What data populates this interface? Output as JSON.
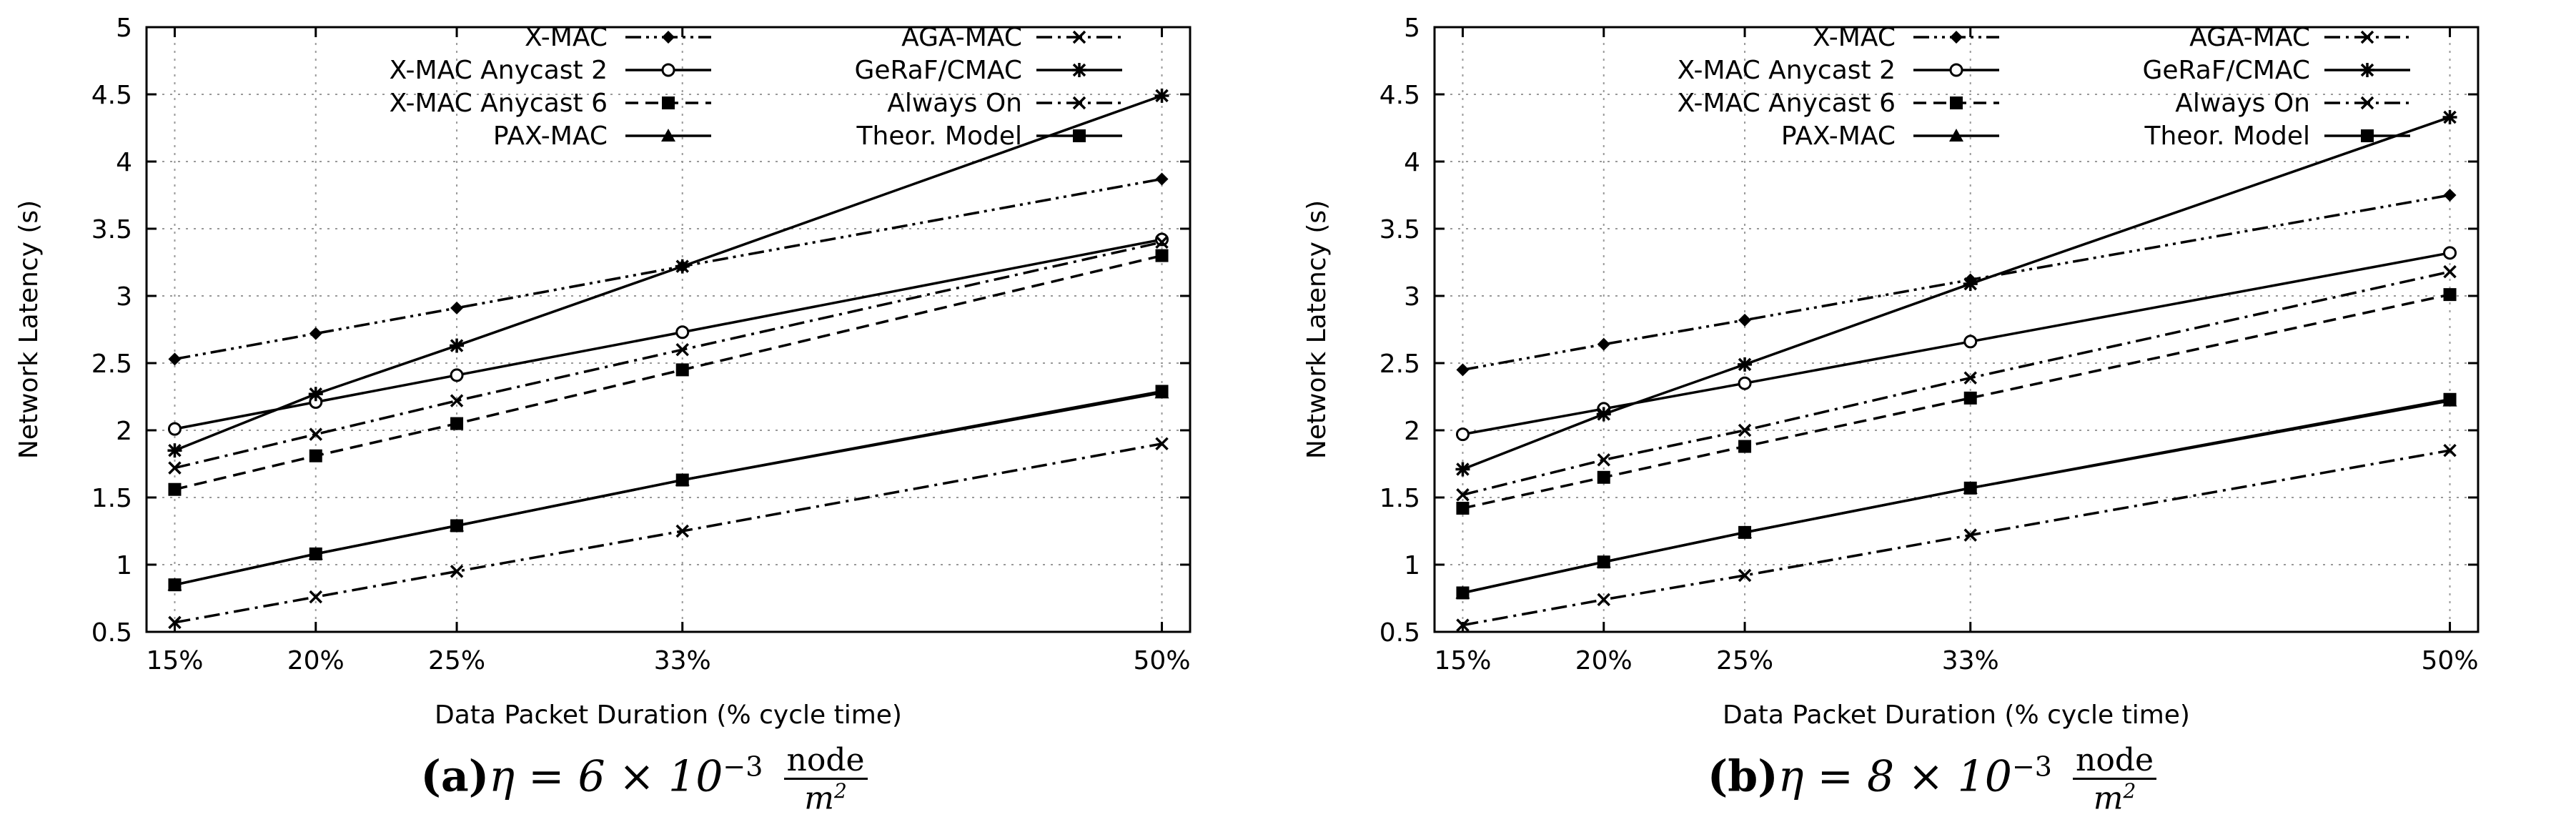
{
  "xlabel": "Data Packet Duration (% cycle time)",
  "ylabel": "Network Latency (s)",
  "legend": [
    {
      "name": "X-MAC",
      "marker": "diamond",
      "dash": "dashdotdot",
      "col": 0
    },
    {
      "name": "X-MAC Anycast 2",
      "marker": "circle",
      "dash": "solid",
      "col": 0
    },
    {
      "name": "X-MAC Anycast 6",
      "marker": "square",
      "dash": "dashed",
      "col": 0
    },
    {
      "name": "PAX-MAC",
      "marker": "triangle",
      "dash": "solid",
      "col": 0
    },
    {
      "name": "AGA-MAC",
      "marker": "x",
      "dash": "dashdot",
      "col": 1
    },
    {
      "name": "GeRaF/CMAC",
      "marker": "star",
      "dash": "solid",
      "col": 1
    },
    {
      "name": "Always On",
      "marker": "x",
      "dash": "dashdot",
      "col": 1
    },
    {
      "name": "Theor. Model",
      "marker": "square",
      "dash": "solid",
      "col": 1
    }
  ],
  "chart_data": [
    {
      "type": "line",
      "caption_label": "(a)",
      "caption_text": "η = 6 × 10",
      "caption_exp": "−3",
      "caption_num": "node",
      "caption_den": "m",
      "caption_den_exp": "2",
      "xlabel": "Data Packet Duration (% cycle time)",
      "ylabel": "Network Latency (s)",
      "x": [
        15,
        20,
        25,
        33,
        50
      ],
      "xtick_labels": [
        "15%",
        "20%",
        "25%",
        "33%",
        "50%"
      ],
      "xlim": [
        14,
        51
      ],
      "ylim": [
        0.5,
        5
      ],
      "yticks": [
        "0.5",
        "1",
        "1.5",
        "2",
        "2.5",
        "3",
        "3.5",
        "4",
        "4.5",
        "5"
      ],
      "grid": true,
      "series": [
        {
          "name": "X-MAC",
          "values": [
            2.53,
            2.72,
            2.91,
            3.22,
            3.87
          ]
        },
        {
          "name": "X-MAC Anycast 2",
          "values": [
            2.01,
            2.21,
            2.41,
            2.73,
            3.42
          ]
        },
        {
          "name": "X-MAC Anycast 6",
          "values": [
            1.56,
            1.81,
            2.05,
            2.45,
            3.3
          ]
        },
        {
          "name": "PAX-MAC",
          "values": [
            0.85,
            1.08,
            1.29,
            1.63,
            2.28
          ]
        },
        {
          "name": "AGA-MAC",
          "values": [
            1.72,
            1.97,
            2.22,
            2.6,
            3.4
          ]
        },
        {
          "name": "GeRaF/CMAC",
          "values": [
            1.85,
            2.27,
            2.63,
            3.22,
            4.49
          ]
        },
        {
          "name": "Always On",
          "values": [
            0.57,
            0.76,
            0.95,
            1.25,
            1.9
          ]
        },
        {
          "name": "Theor. Model",
          "values": [
            0.85,
            1.08,
            1.29,
            1.63,
            2.29
          ]
        }
      ]
    },
    {
      "type": "line",
      "caption_label": "(b)",
      "caption_text": "η = 8 × 10",
      "caption_exp": "−3",
      "caption_num": "node",
      "caption_den": "m",
      "caption_den_exp": "2",
      "xlabel": "Data Packet Duration (% cycle time)",
      "ylabel": "Network Latency (s)",
      "x": [
        15,
        20,
        25,
        33,
        50
      ],
      "xtick_labels": [
        "15%",
        "20%",
        "25%",
        "33%",
        "50%"
      ],
      "xlim": [
        14,
        51
      ],
      "ylim": [
        0.5,
        5
      ],
      "yticks": [
        "0.5",
        "1",
        "1.5",
        "2",
        "2.5",
        "3",
        "3.5",
        "4",
        "4.5",
        "5"
      ],
      "grid": true,
      "series": [
        {
          "name": "X-MAC",
          "values": [
            2.45,
            2.64,
            2.82,
            3.12,
            3.75
          ]
        },
        {
          "name": "X-MAC Anycast 2",
          "values": [
            1.97,
            2.16,
            2.35,
            2.66,
            3.32
          ]
        },
        {
          "name": "X-MAC Anycast 6",
          "values": [
            1.42,
            1.65,
            1.88,
            2.24,
            3.01
          ]
        },
        {
          "name": "PAX-MAC",
          "values": [
            0.79,
            1.02,
            1.24,
            1.57,
            2.22
          ]
        },
        {
          "name": "AGA-MAC",
          "values": [
            1.52,
            1.78,
            2.0,
            2.39,
            3.18
          ]
        },
        {
          "name": "GeRaF/CMAC",
          "values": [
            1.71,
            2.12,
            2.49,
            3.09,
            4.33
          ]
        },
        {
          "name": "Always On",
          "values": [
            0.55,
            0.74,
            0.92,
            1.22,
            1.85
          ]
        },
        {
          "name": "Theor. Model",
          "values": [
            0.79,
            1.02,
            1.24,
            1.57,
            2.23
          ]
        }
      ]
    }
  ]
}
